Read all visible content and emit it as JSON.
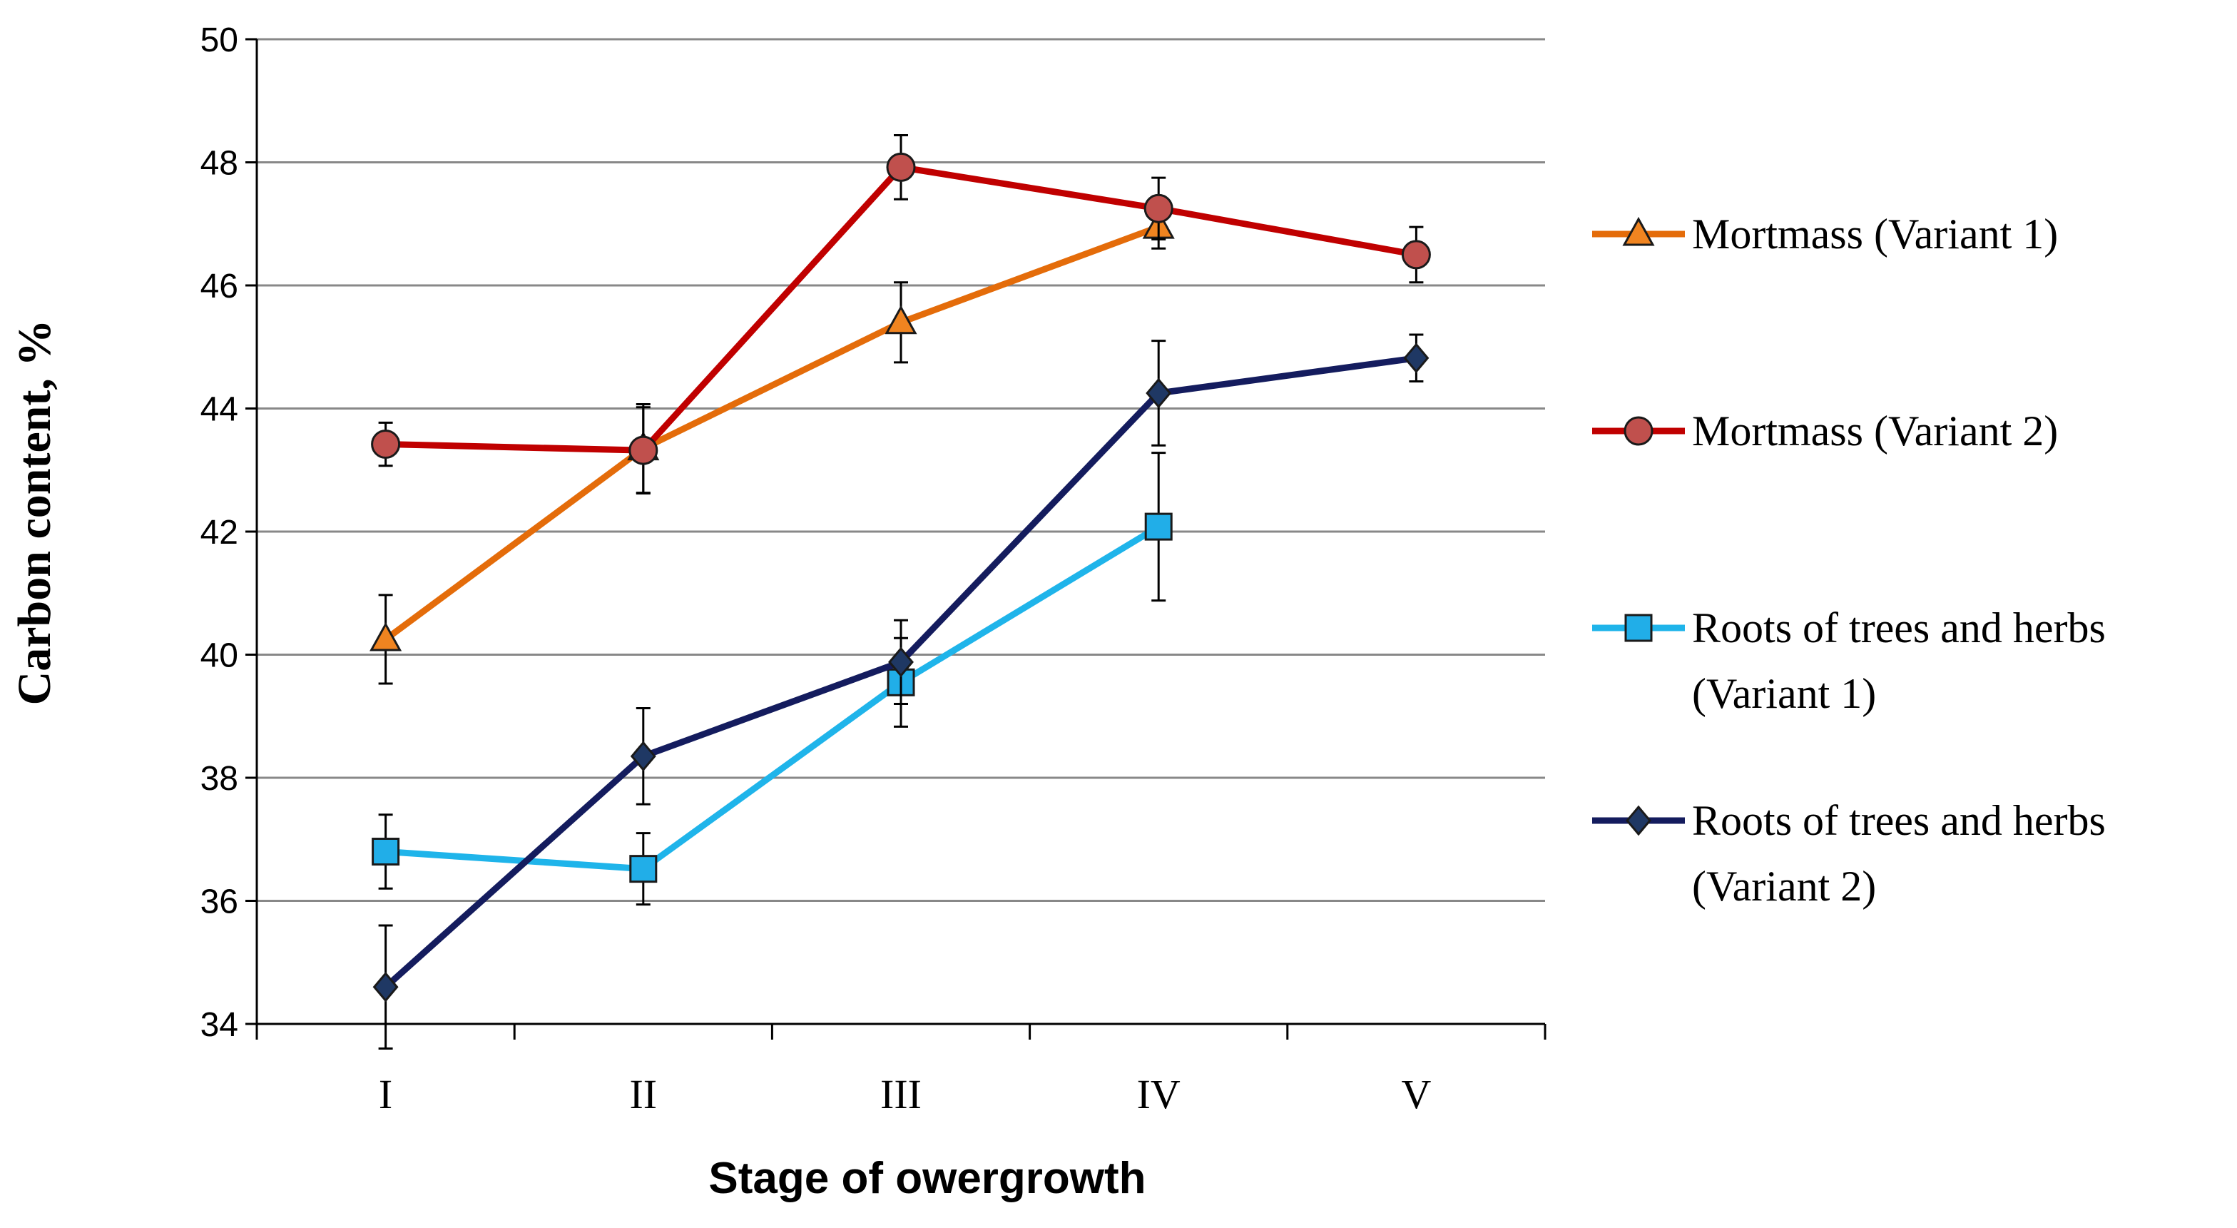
{
  "chart_data": {
    "type": "line",
    "title": "",
    "xlabel": "Stage of owergrowth",
    "ylabel": "Carbon content, %",
    "categories": [
      "I",
      "II",
      "III",
      "IV",
      "V"
    ],
    "ylim": [
      34,
      50
    ],
    "yticks": [
      "34",
      "36",
      "38",
      "40",
      "42",
      "44",
      "46",
      "48",
      "50"
    ],
    "grid": true,
    "legend_position": "right",
    "series": [
      {
        "name": "Mortmass (Variant 1)",
        "legend_lines": [
          "Mortmass (Variant 1)"
        ],
        "color": "#E46C0A",
        "marker": "triangle",
        "marker_fill": "#F08420",
        "values": [
          40.25,
          43.35,
          45.4,
          46.95,
          null
        ],
        "errors": [
          0.72,
          0.72,
          0.65,
          0.35,
          null
        ]
      },
      {
        "name": "Mortmass (Variant 2)",
        "legend_lines": [
          "Mortmass (Variant 2)"
        ],
        "color": "#C00000",
        "marker": "circle",
        "marker_fill": "#C0504D",
        "values": [
          43.42,
          43.32,
          47.92,
          47.25,
          46.5
        ],
        "errors": [
          0.35,
          0.7,
          0.52,
          0.5,
          0.45
        ]
      },
      {
        "name": "Roots of trees and herbs (Variant 1)",
        "legend_lines": [
          "Roots of trees and herbs",
          "(Variant 1)"
        ],
        "color": "#1FB4EA",
        "marker": "square",
        "marker_fill": "#21AEE8",
        "values": [
          36.8,
          36.52,
          39.55,
          42.08,
          null
        ],
        "errors": [
          0.6,
          0.58,
          0.72,
          1.2,
          null
        ]
      },
      {
        "name": "Roots of trees and herbs (Variant 2)",
        "legend_lines": [
          "Roots of trees and herbs",
          "(Variant 2)"
        ],
        "color": "#141C5E",
        "marker": "diamond",
        "marker_fill": "#1F3864",
        "values": [
          34.6,
          38.35,
          39.88,
          44.25,
          44.82
        ],
        "errors": [
          1.0,
          0.78,
          0.68,
          0.85,
          0.38
        ]
      }
    ]
  }
}
